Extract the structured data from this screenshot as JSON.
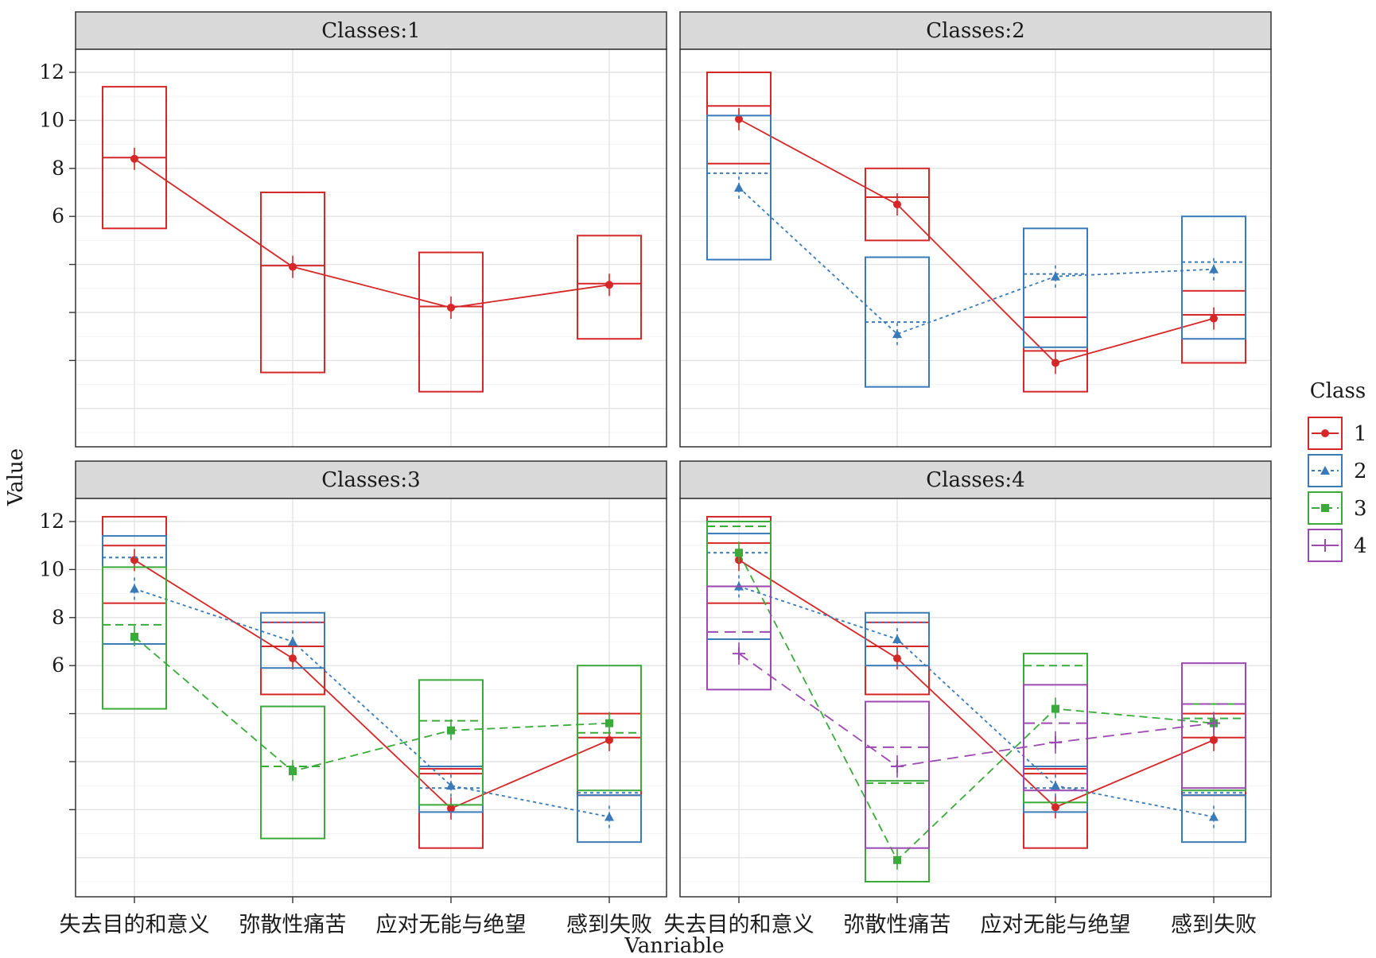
{
  "chart_data": {
    "type": "line",
    "xlabel": "Vanriable",
    "ylabel": "Value",
    "y_ticks": [
      6,
      8,
      10,
      12
    ],
    "categories": [
      "失去目的和意义",
      "弥散性痛苦",
      "应对无能与绝望",
      "感到失败"
    ],
    "legend": {
      "title": "Class",
      "placement": "right",
      "entries": [
        "1",
        "2",
        "3",
        "4"
      ]
    },
    "class_colors": {
      "1": "#d62728",
      "2": "#3a7ab8",
      "3": "#3aaa3a",
      "4": "#9b4bb0"
    },
    "panels": [
      {
        "title": "Classes:1",
        "series": [
          {
            "name": "1",
            "values": [
              8.4,
              3.9,
              2.2,
              3.15
            ],
            "boxes": [
              [
                5.5,
                8.45,
                11.4
              ],
              [
                -0.5,
                3.95,
                7.0
              ],
              [
                -1.3,
                2.25,
                4.5
              ],
              [
                0.9,
                3.2,
                5.2
              ]
            ]
          }
        ]
      },
      {
        "title": "Classes:2",
        "series": [
          {
            "name": "1",
            "values": [
              10.05,
              6.5,
              -0.1,
              1.75
            ],
            "boxes": [
              [
                8.2,
                10.6,
                12.0
              ],
              [
                5.0,
                6.8,
                8.0
              ],
              [
                -1.3,
                0.4,
                1.8
              ],
              [
                -0.1,
                1.9,
                2.9
              ]
            ]
          },
          {
            "name": "2",
            "values": [
              7.2,
              1.1,
              3.5,
              3.8
            ],
            "boxes": [
              [
                4.2,
                7.8,
                10.2
              ],
              [
                -1.1,
                1.6,
                4.3
              ],
              [
                0.55,
                3.6,
                5.5
              ],
              [
                0.9,
                4.1,
                6.0
              ]
            ]
          }
        ]
      },
      {
        "title": "Classes:3",
        "series": [
          {
            "name": "1",
            "values": [
              10.4,
              6.3,
              0.05,
              2.9
            ],
            "boxes": [
              [
                8.6,
                11.0,
                12.2
              ],
              [
                4.8,
                6.8,
                7.8
              ],
              [
                -1.6,
                1.5,
                1.7
              ],
              [
                0.6,
                3.0,
                4.0
              ]
            ]
          },
          {
            "name": "2",
            "values": [
              9.2,
              7.0,
              1.0,
              -0.3
            ],
            "boxes": [
              [
                6.9,
                10.5,
                11.4
              ],
              [
                5.9,
                7.8,
                8.2
              ],
              [
                -0.1,
                0.9,
                1.8
              ],
              [
                -1.35,
                0.7,
                0.6
              ]
            ]
          },
          {
            "name": "3",
            "values": [
              7.2,
              1.6,
              3.3,
              3.6
            ],
            "boxes": [
              [
                4.2,
                7.7,
                10.1
              ],
              [
                -1.2,
                1.8,
                4.3
              ],
              [
                0.2,
                3.7,
                5.4
              ],
              [
                0.8,
                3.2,
                6.0
              ]
            ]
          }
        ]
      },
      {
        "title": "Classes:4",
        "series": [
          {
            "name": "1",
            "values": [
              10.4,
              6.3,
              0.1,
              2.9
            ],
            "boxes": [
              [
                8.6,
                11.1,
                12.2
              ],
              [
                4.8,
                6.8,
                7.8
              ],
              [
                -1.6,
                1.5,
                1.7
              ],
              [
                0.6,
                3.0,
                4.0
              ]
            ]
          },
          {
            "name": "2",
            "values": [
              9.3,
              7.1,
              1.0,
              -0.3
            ],
            "boxes": [
              [
                7.1,
                10.7,
                11.5
              ],
              [
                6.0,
                7.8,
                8.2
              ],
              [
                -0.1,
                0.9,
                1.8
              ],
              [
                -1.35,
                0.7,
                0.6
              ]
            ]
          },
          {
            "name": "3",
            "values": [
              10.7,
              -2.1,
              4.2,
              3.6
            ],
            "boxes": [
              [
                9.3,
                11.8,
                12.0
              ],
              [
                -3.0,
                1.1,
                1.2
              ],
              [
                0.3,
                6.0,
                6.5
              ],
              [
                0.8,
                3.8,
                4.4
              ]
            ]
          },
          {
            "name": "4",
            "values": [
              6.5,
              1.8,
              2.8,
              3.6
            ],
            "boxes": [
              [
                5.0,
                7.4,
                9.3
              ],
              [
                -1.6,
                2.6,
                4.5
              ],
              [
                0.8,
                3.6,
                5.2
              ],
              [
                0.9,
                4.4,
                6.1
              ]
            ]
          }
        ]
      }
    ]
  }
}
